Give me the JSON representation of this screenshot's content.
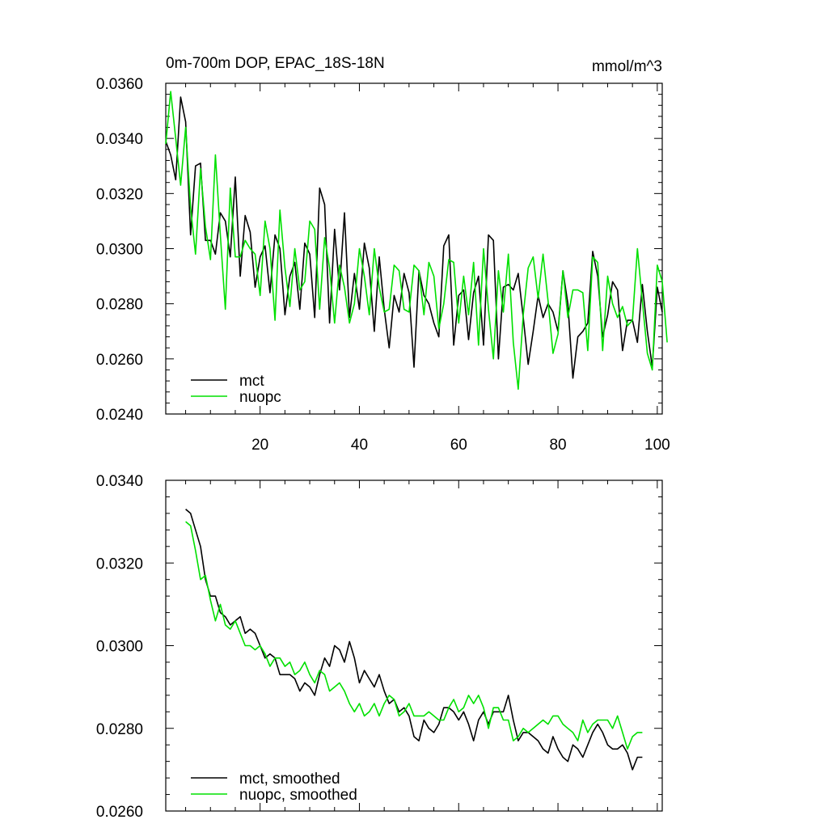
{
  "chart_data": [
    {
      "type": "line",
      "title": "0m-700m DOP, EPAC_18S-18N",
      "units": "mmol/m^3",
      "xlim": [
        1,
        101
      ],
      "ylim": [
        0.024,
        0.036
      ],
      "x_ticks": [
        20,
        40,
        60,
        80,
        100
      ],
      "x_tick_labels": [
        "20",
        "40",
        "60",
        "80",
        "100"
      ],
      "y_ticks": [
        0.024,
        0.026,
        0.028,
        0.03,
        0.032,
        0.034,
        0.036
      ],
      "y_tick_labels": [
        "0.0240",
        "0.0260",
        "0.0280",
        "0.0300",
        "0.0320",
        "0.0340",
        "0.0360"
      ],
      "grid": false,
      "legend_position": "bottom-left",
      "series": [
        {
          "name": "mct",
          "color": "#000000",
          "x_start": 1,
          "values": [
            0.0339,
            0.0334,
            0.0325,
            0.0355,
            0.0346,
            0.0305,
            0.033,
            0.0331,
            0.0303,
            0.0303,
            0.0298,
            0.0313,
            0.031,
            0.0297,
            0.0326,
            0.029,
            0.0312,
            0.0306,
            0.0286,
            0.0297,
            0.0301,
            0.0284,
            0.0305,
            0.03,
            0.0276,
            0.029,
            0.0295,
            0.0278,
            0.0302,
            0.0298,
            0.0275,
            0.0322,
            0.0316,
            0.0273,
            0.0307,
            0.0285,
            0.0313,
            0.0275,
            0.0291,
            0.0278,
            0.0302,
            0.0293,
            0.027,
            0.0297,
            0.0278,
            0.0264,
            0.0283,
            0.0277,
            0.0291,
            0.0284,
            0.0257,
            0.0292,
            0.0283,
            0.028,
            0.0273,
            0.0268,
            0.0301,
            0.0305,
            0.0265,
            0.0283,
            0.0285,
            0.0267,
            0.0284,
            0.029,
            0.0265,
            0.0305,
            0.0303,
            0.026,
            0.0286,
            0.0287,
            0.0285,
            0.0291,
            0.0275,
            0.0258,
            0.027,
            0.0283,
            0.0275,
            0.028,
            0.0277,
            0.027,
            0.0292,
            0.028,
            0.0253,
            0.0268,
            0.027,
            0.0273,
            0.0299,
            0.029,
            0.0268,
            0.0276,
            0.0288,
            0.0285,
            0.0263,
            0.0274,
            0.0274,
            0.0266,
            0.0287,
            0.027,
            0.0257,
            0.0286,
            0.0277
          ]
        },
        {
          "name": "nuopc",
          "color": "#00e000",
          "x_start": 1,
          "values": [
            0.0338,
            0.0357,
            0.034,
            0.0323,
            0.0344,
            0.0315,
            0.0298,
            0.0329,
            0.0308,
            0.0296,
            0.0334,
            0.0305,
            0.0278,
            0.0322,
            0.0297,
            0.0297,
            0.0303,
            0.03,
            0.0298,
            0.0283,
            0.031,
            0.03,
            0.0274,
            0.0314,
            0.0293,
            0.0279,
            0.03,
            0.0285,
            0.0288,
            0.031,
            0.0307,
            0.0278,
            0.0304,
            0.0293,
            0.0273,
            0.0294,
            0.0286,
            0.0273,
            0.028,
            0.03,
            0.029,
            0.0276,
            0.03,
            0.0286,
            0.0277,
            0.0278,
            0.0294,
            0.0292,
            0.0278,
            0.0277,
            0.0294,
            0.0292,
            0.0276,
            0.0295,
            0.029,
            0.0271,
            0.028,
            0.0296,
            0.0295,
            0.0273,
            0.029,
            0.0276,
            0.0295,
            0.0265,
            0.03,
            0.0278,
            0.026,
            0.0292,
            0.0277,
            0.0298,
            0.0266,
            0.0249,
            0.0276,
            0.0293,
            0.0297,
            0.0282,
            0.0298,
            0.0281,
            0.0262,
            0.0269,
            0.0292,
            0.0275,
            0.0285,
            0.0285,
            0.0284,
            0.0263,
            0.0297,
            0.0295,
            0.0263,
            0.029,
            0.028,
            0.0275,
            0.0279,
            0.0272,
            0.0274,
            0.03,
            0.0281,
            0.0262,
            0.0256,
            0.0294,
            0.0288,
            0.0266
          ]
        }
      ]
    },
    {
      "type": "line",
      "xlim": [
        1,
        101
      ],
      "ylim": [
        0.026,
        0.034
      ],
      "x_ticks": [
        20,
        40,
        60,
        80,
        100
      ],
      "y_ticks": [
        0.026,
        0.028,
        0.03,
        0.032,
        0.034
      ],
      "y_tick_labels": [
        "0.0260",
        "0.0280",
        "0.0300",
        "0.0320",
        "0.0340"
      ],
      "grid": false,
      "legend_position": "bottom-left",
      "series": [
        {
          "name": "mct, smoothed",
          "color": "#000000",
          "x_start": 5,
          "values": [
            0.0333,
            0.0332,
            0.0328,
            0.0324,
            0.0316,
            0.0312,
            0.0312,
            0.0308,
            0.0307,
            0.0305,
            0.0306,
            0.0307,
            0.0303,
            0.0304,
            0.0303,
            0.03,
            0.0297,
            0.0298,
            0.0297,
            0.0293,
            0.0293,
            0.0293,
            0.0292,
            0.0289,
            0.0291,
            0.029,
            0.0288,
            0.0293,
            0.0297,
            0.0295,
            0.03,
            0.0299,
            0.0296,
            0.0301,
            0.0297,
            0.0291,
            0.0294,
            0.0292,
            0.029,
            0.0293,
            0.0289,
            0.0286,
            0.0287,
            0.0284,
            0.0285,
            0.0283,
            0.0278,
            0.0277,
            0.0282,
            0.028,
            0.0279,
            0.0281,
            0.0285,
            0.0285,
            0.0284,
            0.0282,
            0.0284,
            0.0281,
            0.0277,
            0.0282,
            0.0284,
            0.0281,
            0.0284,
            0.0284,
            0.0284,
            0.0288,
            0.0282,
            0.0277,
            0.0279,
            0.0279,
            0.0278,
            0.0277,
            0.0275,
            0.0274,
            0.0278,
            0.0275,
            0.0273,
            0.0272,
            0.0276,
            0.0275,
            0.0273,
            0.0276,
            0.0279,
            0.0281,
            0.0279,
            0.0276,
            0.0275,
            0.0275,
            0.0276,
            0.0274,
            0.027,
            0.0273,
            0.0273
          ]
        },
        {
          "name": "nuopc, smoothed",
          "color": "#00e000",
          "x_start": 5,
          "values": [
            0.033,
            0.0329,
            0.0323,
            0.0316,
            0.0317,
            0.0311,
            0.0306,
            0.031,
            0.0305,
            0.0304,
            0.0306,
            0.0303,
            0.03,
            0.03,
            0.0299,
            0.03,
            0.0298,
            0.0295,
            0.0297,
            0.0297,
            0.0295,
            0.0296,
            0.0293,
            0.0294,
            0.0296,
            0.0293,
            0.0291,
            0.0294,
            0.0293,
            0.0289,
            0.029,
            0.0291,
            0.0289,
            0.0286,
            0.0284,
            0.0286,
            0.0283,
            0.0284,
            0.0286,
            0.0283,
            0.0286,
            0.0288,
            0.0287,
            0.0283,
            0.0284,
            0.0286,
            0.0283,
            0.0283,
            0.0283,
            0.0284,
            0.0283,
            0.0282,
            0.0282,
            0.0285,
            0.0287,
            0.0284,
            0.0285,
            0.0288,
            0.0286,
            0.0288,
            0.0285,
            0.028,
            0.0285,
            0.0285,
            0.0282,
            0.0282,
            0.0277,
            0.0278,
            0.028,
            0.0279,
            0.028,
            0.0281,
            0.0282,
            0.0281,
            0.0283,
            0.0283,
            0.0281,
            0.028,
            0.0279,
            0.0277,
            0.0282,
            0.0279,
            0.0281,
            0.0282,
            0.0282,
            0.0282,
            0.028,
            0.0283,
            0.0279,
            0.0275,
            0.0278,
            0.0279,
            0.0279
          ]
        }
      ]
    }
  ]
}
